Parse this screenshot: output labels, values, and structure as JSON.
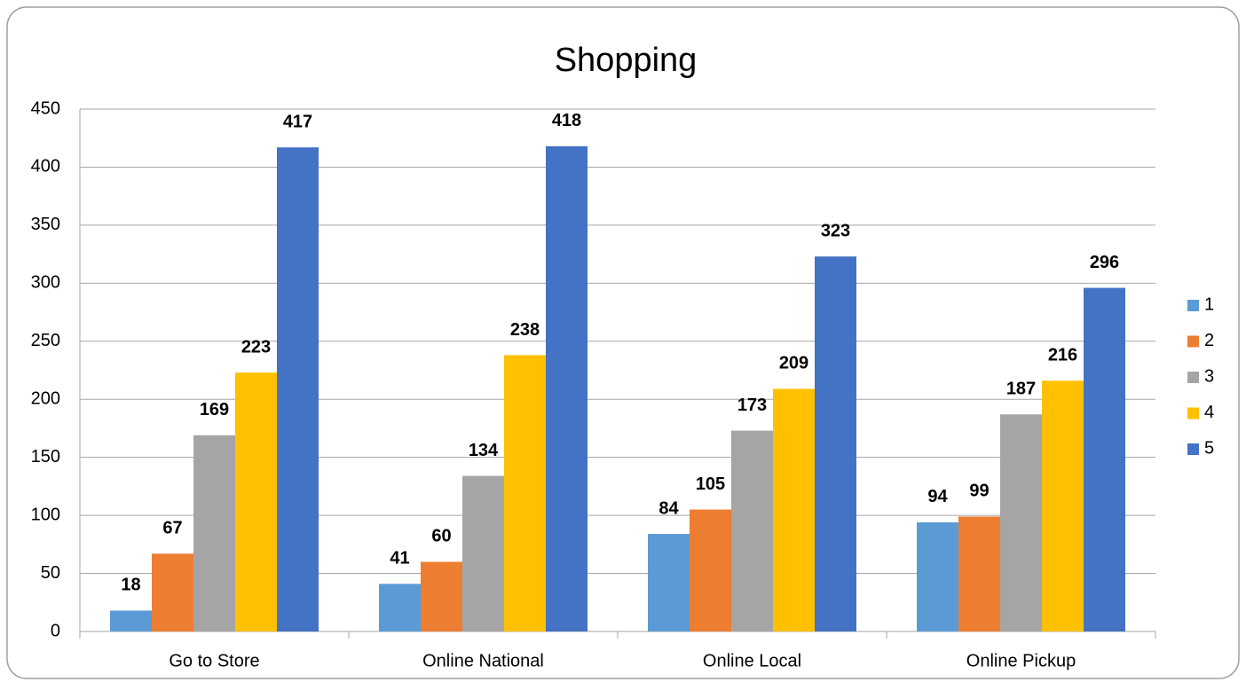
{
  "chart_data": {
    "type": "bar",
    "title": "Shopping",
    "categories": [
      "Go to Store",
      "Online National",
      "Online Local",
      "Online Pickup"
    ],
    "series": [
      {
        "name": "1",
        "color": "#5b9bd5",
        "values": [
          18,
          41,
          84,
          94
        ]
      },
      {
        "name": "2",
        "color": "#ed7d31",
        "values": [
          67,
          60,
          105,
          99
        ]
      },
      {
        "name": "3",
        "color": "#a5a5a5",
        "values": [
          169,
          134,
          173,
          187
        ]
      },
      {
        "name": "4",
        "color": "#ffc000",
        "values": [
          223,
          238,
          209,
          216
        ]
      },
      {
        "name": "5",
        "color": "#4472c4",
        "values": [
          417,
          418,
          323,
          296
        ]
      }
    ],
    "ylim": [
      0,
      450
    ],
    "yticks": [
      0,
      50,
      100,
      150,
      200,
      250,
      300,
      350,
      400,
      450
    ],
    "grid": true,
    "legend": "right"
  }
}
